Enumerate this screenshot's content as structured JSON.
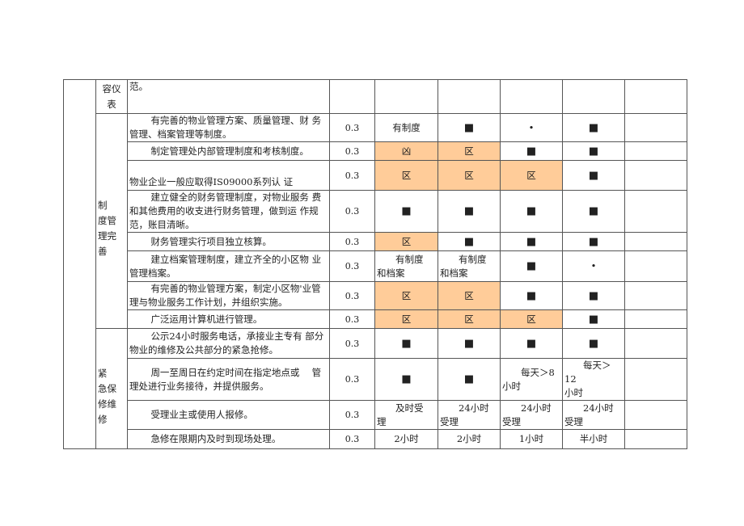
{
  "highlight_color": "#FFCC99",
  "categories": [
    {
      "label": "容仪\n表"
    },
    {
      "label": "　　制\n度管\n理完\n善"
    },
    {
      "label": "　　紧\n急保\n修维\n修"
    }
  ],
  "rows": [
    {
      "desc": "范。",
      "score": "",
      "cells": [
        {
          "v": ""
        },
        {
          "v": ""
        },
        {
          "v": ""
        },
        {
          "v": ""
        },
        {
          "v": ""
        }
      ]
    },
    {
      "desc": "有完善的物业管理方案、质量管理、财 务管理、档案管理等制度。",
      "score": "0.3",
      "cells": [
        {
          "v": "有制度"
        },
        {
          "v": "■"
        },
        {
          "v": "•"
        },
        {
          "v": "■"
        },
        {
          "v": ""
        }
      ]
    },
    {
      "desc": "制定管理处内部管理制度和考核制度。",
      "score": "0.3",
      "cells": [
        {
          "v": "凶",
          "fill": true
        },
        {
          "v": "区",
          "fill": true
        },
        {
          "v": "■"
        },
        {
          "v": "■"
        },
        {
          "v": ""
        }
      ]
    },
    {
      "desc": "\n物业企业一般应取得IS09000系列认 证",
      "score": "0.3",
      "cells": [
        {
          "v": "区",
          "fill": true
        },
        {
          "v": "区",
          "fill": true
        },
        {
          "v": "区",
          "fill": true
        },
        {
          "v": "■"
        },
        {
          "v": ""
        }
      ]
    },
    {
      "desc": "建立健全的财务管理制度，对物业服务 费和其他费用的收支进行财务管理，做到运 作规范，账目清晰。",
      "score": "0.3",
      "cells": [
        {
          "v": "■"
        },
        {
          "v": "■"
        },
        {
          "v": "■"
        },
        {
          "v": "■"
        },
        {
          "v": ""
        }
      ]
    },
    {
      "desc": "财务管理实行项目独立核算。",
      "score": "0.3",
      "cells": [
        {
          "v": "区",
          "fill": true
        },
        {
          "v": "■"
        },
        {
          "v": "■"
        },
        {
          "v": "■"
        },
        {
          "v": ""
        }
      ]
    },
    {
      "desc": "建立档案管理制度，建立齐全的小区物 业管理档案。",
      "score": "0.3",
      "cells": [
        {
          "v": "有制度\n和档案",
          "multi": true
        },
        {
          "v": "有制度\n和档案",
          "multi": true
        },
        {
          "v": "■"
        },
        {
          "v": "•"
        },
        {
          "v": ""
        }
      ]
    },
    {
      "desc": "有完善的物业管理方案，制定小区物'业管理与物业服务工作计划，并组织实施。",
      "score": "0.3",
      "cells": [
        {
          "v": "区",
          "fill": true
        },
        {
          "v": "区",
          "fill": true
        },
        {
          "v": "■"
        },
        {
          "v": "■"
        },
        {
          "v": ""
        }
      ]
    },
    {
      "desc": "广泛运用计算机进行管理。",
      "score": "0.3",
      "cells": [
        {
          "v": "区",
          "fill": true
        },
        {
          "v": "区",
          "fill": true
        },
        {
          "v": "区",
          "fill": true
        },
        {
          "v": "■"
        },
        {
          "v": ""
        }
      ]
    },
    {
      "desc": "公示24小时服务电话，承接业主专有 部分物业的维修及公共部分的紧急抢修。",
      "score": "0.3",
      "cells": [
        {
          "v": "■"
        },
        {
          "v": "■"
        },
        {
          "v": "■"
        },
        {
          "v": "■"
        },
        {
          "v": ""
        }
      ]
    },
    {
      "desc": "周一至周日在约定时间在指定地点或　 管理处进行业务接待，并提供服务。",
      "score": "0.3",
      "cells": [
        {
          "v": "■"
        },
        {
          "v": "■"
        },
        {
          "v": "每天＞8\n小时",
          "multi": true
        },
        {
          "v": "每天＞12\n小时",
          "multi": true
        },
        {
          "v": ""
        }
      ]
    },
    {
      "desc": "受理业主或使用人报修。",
      "score": "0.3",
      "cells": [
        {
          "v": "及时受\n理",
          "multi": true
        },
        {
          "v": "24小时\n受理",
          "multi": true
        },
        {
          "v": "24小时\n受理",
          "multi": true
        },
        {
          "v": "24小时\n受理",
          "multi": true
        },
        {
          "v": ""
        }
      ]
    },
    {
      "desc": "急修在限期内及时到现场处理。",
      "score": "0.3",
      "cells": [
        {
          "v": "2小时"
        },
        {
          "v": "2小时"
        },
        {
          "v": "1小时"
        },
        {
          "v": "半小时"
        },
        {
          "v": ""
        }
      ]
    }
  ]
}
